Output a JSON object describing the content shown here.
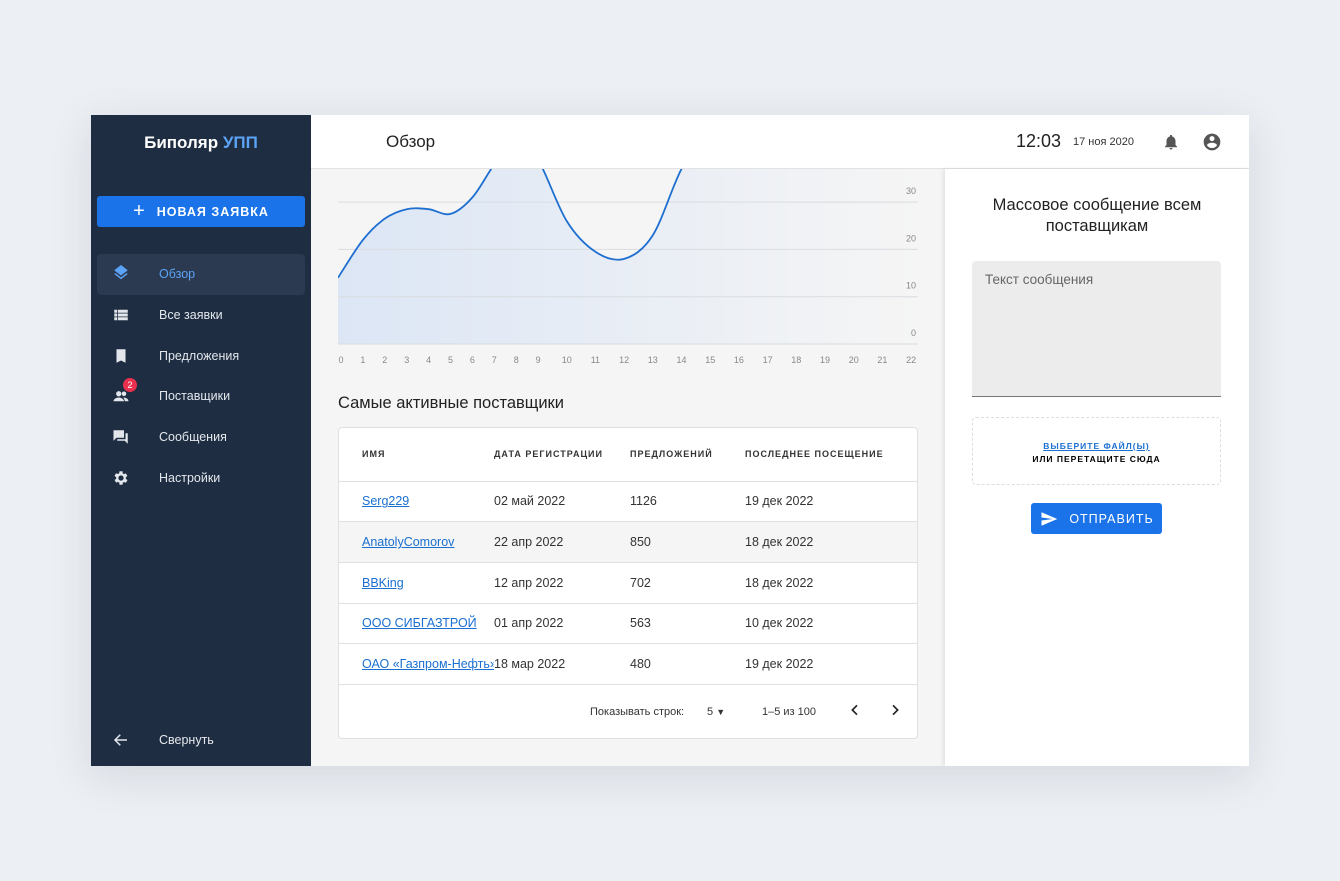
{
  "sidebar": {
    "logo_main": "Биполяр",
    "logo_accent": "УПП",
    "new_button": "НОВАЯ ЗАЯВКА",
    "items": [
      {
        "label": "Обзор",
        "icon": "layers-icon",
        "active": true
      },
      {
        "label": "Все заявки",
        "icon": "list-icon"
      },
      {
        "label": "Предложения",
        "icon": "bookmark-icon"
      },
      {
        "label": "Поставщики",
        "icon": "people-icon",
        "badge": "2"
      },
      {
        "label": "Сообщения",
        "icon": "forum-icon"
      },
      {
        "label": "Настройки",
        "icon": "gear-icon"
      }
    ],
    "collapse": "Свернуть"
  },
  "header": {
    "title": "Обзор",
    "time": "12:03",
    "date": "17 ноя 2020"
  },
  "colors": {
    "accent": "#1a73e8",
    "sidebar": "#1f2d42",
    "badge": "#e8304f",
    "line": "#1e6fd0"
  },
  "chart_data": {
    "type": "area",
    "x": [
      0,
      1,
      2,
      3,
      4,
      5,
      6,
      7,
      8,
      9,
      10,
      11,
      12,
      13,
      14,
      15
    ],
    "values": [
      14,
      22,
      26.5,
      28.5,
      28.5,
      27.5,
      31,
      38,
      44,
      39,
      26,
      19.5,
      18,
      23,
      37,
      46
    ],
    "x_ticks": [
      "0",
      "1",
      "2",
      "3",
      "4",
      "5",
      "6",
      "7",
      "8",
      "9",
      "10",
      "11",
      "12",
      "13",
      "14",
      "15",
      "16",
      "17",
      "18",
      "19",
      "20",
      "21",
      "22"
    ],
    "y_ticks": [
      "0",
      "10",
      "20",
      "30"
    ],
    "ylim": [
      0,
      37
    ],
    "grid": true
  },
  "suppliers": {
    "title": "Самые активные поставщики",
    "columns": [
      "ИМЯ",
      "ДАТА РЕГИСТРАЦИИ",
      "ПРЕДЛОЖЕНИЙ",
      "ПОСЛЕДНЕЕ ПОСЕЩЕНИЕ"
    ],
    "rows": [
      [
        "Serg229",
        "02 май 2022",
        "1126",
        "19 дек 2022"
      ],
      [
        "AnatolyComorov",
        "22 апр 2022",
        "850",
        "18 дек 2022"
      ],
      [
        "BBKing",
        "12 апр 2022",
        "702",
        "18 дек 2022"
      ],
      [
        "ООО СИБГАЗТРОЙ",
        "01 апр 2022",
        "563",
        "10 дек 2022"
      ],
      [
        "ОАО «Газпром-Нефть»",
        "18 мар 2022",
        "480",
        "19 дек 2022"
      ]
    ],
    "rows_label": "Показывать строк:",
    "rows_value": "5",
    "range": "1–5 из 100"
  },
  "message": {
    "title": "Массовое сообщение всем поставщикам",
    "placeholder": "Текст сообщения",
    "choose": "ВЫБЕРИТЕ ФАЙЛ(Ы)",
    "drop": "ИЛИ ПЕРЕТАЩИТЕ СЮДА",
    "send": "ОТПРАВИТЬ"
  }
}
